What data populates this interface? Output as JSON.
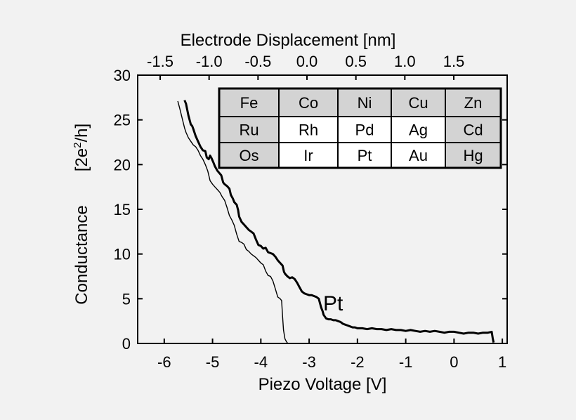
{
  "chart_data": {
    "type": "line",
    "top_axis": {
      "label": "Electrode Displacement [nm]",
      "ticks": [
        -1.5,
        -1.0,
        -0.5,
        0.0,
        0.5,
        1.0,
        1.5
      ],
      "tick_labels": [
        "-1.5",
        "-1.0",
        "-0.5",
        "0.0",
        "0.5",
        "1.0",
        "1.5"
      ]
    },
    "xlabel": "Piezo Voltage [V]",
    "xlim": [
      -6.55,
      1.1
    ],
    "xticks": [
      -6,
      -5,
      -4,
      -3,
      -2,
      -1,
      0,
      1
    ],
    "xtick_labels": [
      "-6",
      "-5",
      "-4",
      "-3",
      "-2",
      "-1",
      "0",
      "1"
    ],
    "ylabel_main": "Conductance",
    "ylabel_unit_base": "[2e",
    "ylabel_unit_sup": "2",
    "ylabel_unit_end": "/h]",
    "ylim": [
      0,
      30
    ],
    "yticks": [
      0,
      5,
      10,
      15,
      20,
      25,
      30
    ],
    "ytick_labels": [
      "0",
      "5",
      "10",
      "15",
      "20",
      "25",
      "30"
    ],
    "annotation": "Pt",
    "grid": false,
    "series": [
      {
        "style": "thick",
        "x": [
          -5.58,
          -5.55,
          -5.5,
          -5.45,
          -5.42,
          -5.4,
          -5.35,
          -5.3,
          -5.25,
          -5.2,
          -5.15,
          -5.12,
          -5.08,
          -5.05,
          -5.02,
          -4.98,
          -4.95,
          -4.9,
          -4.85,
          -4.82,
          -4.78,
          -4.75,
          -4.7,
          -4.65,
          -4.62,
          -4.58,
          -4.55,
          -4.5,
          -4.47,
          -4.45,
          -4.4,
          -4.35,
          -4.3,
          -4.25,
          -4.2,
          -4.15,
          -4.1,
          -4.05,
          -4.0,
          -3.95,
          -3.9,
          -3.85,
          -3.8,
          -3.75,
          -3.7,
          -3.65,
          -3.6,
          -3.55,
          -3.52,
          -3.5,
          -3.45,
          -3.4,
          -3.35,
          -3.3,
          -3.25,
          -3.2,
          -3.15,
          -3.1,
          -3.05,
          -3.0,
          -2.95,
          -2.9,
          -2.85,
          -2.8,
          -2.75,
          -2.72,
          -2.7,
          -2.65,
          -2.6,
          -2.55,
          -2.5,
          -2.45,
          -2.4,
          -2.35,
          -2.3,
          -2.25,
          -2.2,
          -2.15,
          -2.1,
          -2.05,
          -2.0,
          -1.9,
          -1.8,
          -1.7,
          -1.6,
          -1.5,
          -1.4,
          -1.3,
          -1.2,
          -1.1,
          -1.0,
          -0.9,
          -0.8,
          -0.7,
          -0.6,
          -0.5,
          -0.4,
          -0.3,
          -0.2,
          -0.1,
          0.0,
          0.1,
          0.2,
          0.3,
          0.4,
          0.5,
          0.6,
          0.7,
          0.78,
          0.8,
          0.82
        ],
        "y": [
          27.2,
          26.8,
          25.5,
          24.5,
          24.3,
          24.0,
          23.2,
          22.6,
          22.0,
          21.6,
          21.5,
          20.8,
          20.6,
          21.0,
          20.7,
          20.2,
          19.8,
          19.3,
          19.0,
          18.8,
          18.0,
          17.8,
          17.6,
          17.3,
          16.6,
          16.2,
          15.8,
          15.5,
          14.9,
          14.2,
          13.6,
          13.3,
          13.0,
          12.7,
          12.5,
          12.3,
          11.6,
          11.0,
          10.9,
          10.6,
          10.7,
          10.2,
          10.1,
          10.0,
          9.7,
          9.3,
          9.0,
          8.7,
          8.0,
          7.8,
          7.5,
          7.3,
          7.4,
          7.2,
          6.8,
          6.3,
          5.8,
          5.6,
          5.5,
          5.4,
          5.4,
          5.3,
          5.2,
          5.0,
          4.0,
          3.6,
          3.2,
          2.8,
          2.7,
          2.7,
          2.6,
          2.6,
          2.5,
          2.4,
          2.2,
          2.1,
          2.0,
          1.9,
          1.8,
          1.8,
          1.7,
          1.7,
          1.6,
          1.7,
          1.6,
          1.6,
          1.5,
          1.6,
          1.5,
          1.5,
          1.4,
          1.5,
          1.4,
          1.3,
          1.4,
          1.3,
          1.4,
          1.3,
          1.2,
          1.3,
          1.3,
          1.2,
          1.1,
          1.2,
          1.2,
          1.1,
          1.2,
          1.2,
          1.3,
          0.6,
          0.1
        ]
      },
      {
        "style": "thin",
        "x": [
          -5.72,
          -5.68,
          -5.62,
          -5.58,
          -5.55,
          -5.5,
          -5.45,
          -5.4,
          -5.35,
          -5.3,
          -5.25,
          -5.2,
          -5.15,
          -5.1,
          -5.05,
          -5.0,
          -4.95,
          -4.9,
          -4.85,
          -4.8,
          -4.75,
          -4.7,
          -4.65,
          -4.6,
          -4.55,
          -4.5,
          -4.45,
          -4.4,
          -4.35,
          -4.3,
          -4.25,
          -4.2,
          -4.15,
          -4.1,
          -4.05,
          -4.0,
          -3.95,
          -3.9,
          -3.85,
          -3.8,
          -3.75,
          -3.7,
          -3.65,
          -3.6,
          -3.57,
          -3.55,
          -3.53,
          -3.5,
          -3.47,
          -3.44
        ],
        "y": [
          27.1,
          26.3,
          25.0,
          24.1,
          23.6,
          23.0,
          22.6,
          22.2,
          22.0,
          21.6,
          21.0,
          20.6,
          20.0,
          19.3,
          18.2,
          17.8,
          17.5,
          17.2,
          16.9,
          16.4,
          16.0,
          15.2,
          14.3,
          13.8,
          13.2,
          12.2,
          11.4,
          11.3,
          11.1,
          10.5,
          10.3,
          10.0,
          9.8,
          9.6,
          9.3,
          9.0,
          8.8,
          8.1,
          7.6,
          7.5,
          7.0,
          6.1,
          5.2,
          5.0,
          4.8,
          3.0,
          1.5,
          0.5,
          0.2,
          0.0
        ]
      }
    ]
  },
  "periodic_table": {
    "rows": [
      [
        {
          "symbol": "Fe",
          "shaded": true
        },
        {
          "symbol": "Co",
          "shaded": true
        },
        {
          "symbol": "Ni",
          "shaded": true
        },
        {
          "symbol": "Cu",
          "shaded": true
        },
        {
          "symbol": "Zn",
          "shaded": true
        }
      ],
      [
        {
          "symbol": "Ru",
          "shaded": true
        },
        {
          "symbol": "Rh",
          "shaded": false
        },
        {
          "symbol": "Pd",
          "shaded": false
        },
        {
          "symbol": "Ag",
          "shaded": false
        },
        {
          "symbol": "Cd",
          "shaded": true
        }
      ],
      [
        {
          "symbol": "Os",
          "shaded": true
        },
        {
          "symbol": "Ir",
          "shaded": false
        },
        {
          "symbol": "Pt",
          "shaded": false
        },
        {
          "symbol": "Au",
          "shaded": false
        },
        {
          "symbol": "Hg",
          "shaded": true
        }
      ]
    ],
    "shade_color": "#d3d3d3",
    "plain_color": "#ffffff"
  },
  "colors": {
    "background": "#f2f2f2",
    "line": "#000000"
  }
}
